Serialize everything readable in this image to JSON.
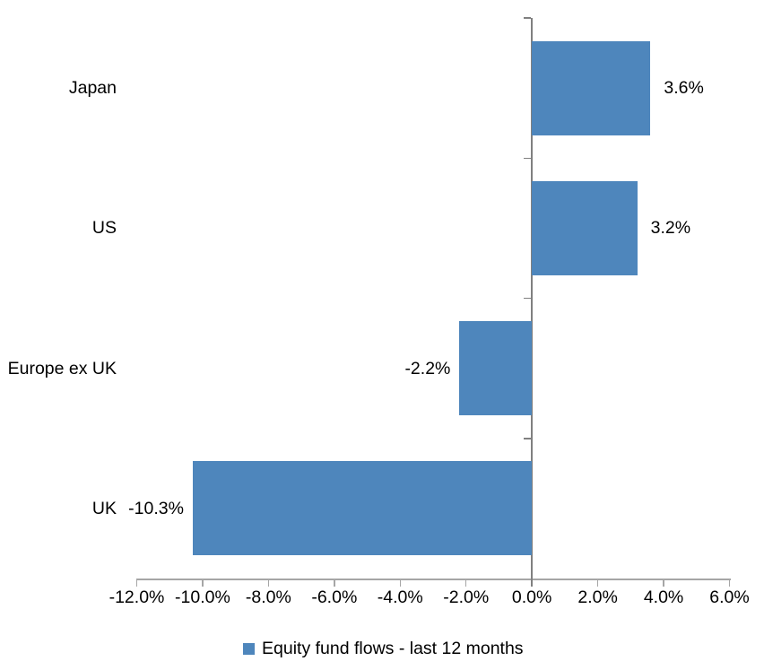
{
  "chart_data": {
    "type": "bar",
    "orientation": "horizontal",
    "title": "",
    "series_name": "Equity fund flows - last 12 months",
    "categories": [
      "Japan",
      "US",
      "Europe ex UK",
      "UK"
    ],
    "values": [
      3.6,
      3.2,
      -2.2,
      -10.3
    ],
    "data_labels": [
      "3.6%",
      "3.2%",
      "-2.2%",
      "-10.3%"
    ],
    "x_tick_labels": [
      "-12.0%",
      "-10.0%",
      "-8.0%",
      "-6.0%",
      "-4.0%",
      "-2.0%",
      "0.0%",
      "2.0%",
      "4.0%",
      "6.0%"
    ],
    "x_tick_values": [
      -12,
      -10,
      -8,
      -6,
      -4,
      -2,
      0,
      2,
      4,
      6
    ],
    "xlim": [
      -12,
      6
    ],
    "grid": false,
    "legend_position": "bottom-center",
    "bar_color": "#4E86BC",
    "value_axis_color": "#A6A6A6",
    "category_axis_color": "#808080",
    "text_color": "#000000"
  },
  "legend": {
    "label": "Equity fund flows - last 12 months"
  }
}
